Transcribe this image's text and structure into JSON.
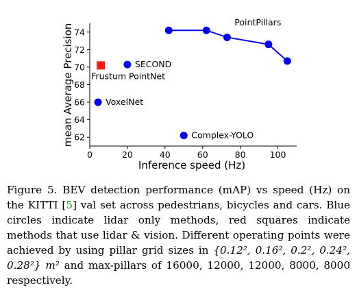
{
  "chart_data": {
    "type": "scatter",
    "xlabel": "Inference speed (Hz)",
    "ylabel": "mean Average Precision",
    "xlim": [
      0,
      110
    ],
    "ylim": [
      61,
      75
    ],
    "xticks": [
      0,
      20,
      40,
      60,
      80,
      100
    ],
    "yticks": [
      62,
      64,
      66,
      68,
      70,
      72,
      74
    ],
    "colors": {
      "lidar": "#0000ee",
      "lidar_vision": "#ff1a1a"
    },
    "series": [
      {
        "name": "PointPillars",
        "kind": "lidar",
        "connected": true,
        "points": [
          {
            "x": 42,
            "y": 74.2
          },
          {
            "x": 62,
            "y": 74.2
          },
          {
            "x": 73,
            "y": 73.4
          },
          {
            "x": 95,
            "y": 72.6
          },
          {
            "x": 105,
            "y": 70.7
          }
        ]
      },
      {
        "name": "SECOND",
        "kind": "lidar",
        "connected": false,
        "points": [
          {
            "x": 20,
            "y": 70.3
          }
        ]
      },
      {
        "name": "VoxelNet",
        "kind": "lidar",
        "connected": false,
        "points": [
          {
            "x": 4.4,
            "y": 66.0
          }
        ]
      },
      {
        "name": "Complex-YOLO",
        "kind": "lidar",
        "connected": false,
        "points": [
          {
            "x": 50,
            "y": 62.2
          }
        ]
      },
      {
        "name": "Frustum PointNet",
        "kind": "lidar_vision",
        "connected": false,
        "points": [
          {
            "x": 5.9,
            "y": 70.2
          }
        ]
      }
    ]
  },
  "caption": {
    "prefix": "Figure 5. BEV detection performance (mAP) vs speed (Hz) on the KITTI [",
    "ref": "5",
    "middle": "] val set across pedestrians, bicycles and cars. Blue circles indicate lidar only methods, red squares indicate methods that use lidar & vision. Different operating points were achieved by using pillar grid sizes in ",
    "math_sizes": "{0.12², 0.16², 0.2², 0.24², 0.28²} m²",
    "suffix": " and max-pillars of 16000, 12000, 12000, 8000, 8000 respectively."
  }
}
